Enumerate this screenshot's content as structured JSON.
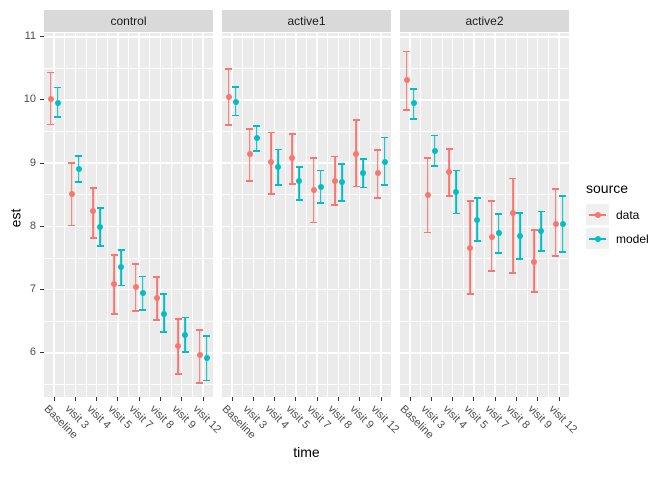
{
  "chart_data": {
    "type": "pointrange",
    "title": "",
    "xlabel": "time",
    "ylabel": "est",
    "categories": [
      "Baseline",
      "visit 3",
      "visit 4",
      "visit 5",
      "visit 7",
      "visit 8",
      "visit 9",
      "visit 12"
    ],
    "y_ticks": [
      6,
      7,
      8,
      9,
      10,
      11
    ],
    "y_minor_ticks": [
      5.5,
      6.5,
      7.5,
      8.5,
      9.5,
      10.5
    ],
    "ylim": [
      5.3,
      11.06
    ],
    "grid": true,
    "legend": {
      "title": "source",
      "position": "right",
      "entries": [
        {
          "label": "data",
          "color": "#F8766D"
        },
        {
          "label": "model",
          "color": "#00BFC4"
        }
      ]
    },
    "facets": [
      {
        "label": "control",
        "series": [
          {
            "name": "data",
            "color": "#F8766D",
            "est": [
              10.02,
              8.51,
              8.24,
              7.09,
              7.04,
              6.86,
              6.1,
              5.96
            ],
            "lo": [
              9.6,
              8.0,
              7.8,
              6.6,
              6.65,
              6.5,
              5.65,
              5.51
            ],
            "hi": [
              10.45,
              9.02,
              8.62,
              7.56,
              7.42,
              7.21,
              6.55,
              6.37
            ]
          },
          {
            "name": "model",
            "color": "#00BFC4",
            "est": [
              9.96,
              8.9,
              7.99,
              7.35,
              6.94,
              6.62,
              6.28,
              5.92
            ],
            "lo": [
              9.72,
              8.69,
              7.68,
              7.05,
              6.66,
              6.31,
              6.0,
              5.55
            ],
            "hi": [
              10.21,
              9.13,
              8.3,
              7.64,
              7.22,
              6.94,
              6.57,
              6.28
            ]
          }
        ]
      },
      {
        "label": "active1",
        "series": [
          {
            "name": "data",
            "color": "#F8766D",
            "est": [
              10.05,
              9.14,
              9.02,
              9.08,
              8.58,
              8.72,
              9.15,
              8.84
            ],
            "lo": [
              9.59,
              8.7,
              8.5,
              8.66,
              8.05,
              8.33,
              8.62,
              8.44
            ],
            "hi": [
              10.5,
              9.55,
              9.5,
              9.48,
              9.1,
              9.12,
              9.7,
              9.22
            ]
          },
          {
            "name": "model",
            "color": "#00BFC4",
            "est": [
              9.97,
              9.4,
              8.94,
              8.72,
              8.63,
              8.7,
              8.85,
              9.02
            ],
            "lo": [
              9.74,
              9.18,
              8.64,
              8.4,
              8.36,
              8.39,
              8.6,
              8.64
            ],
            "hi": [
              10.22,
              9.6,
              9.23,
              8.95,
              8.9,
              9.0,
              9.08,
              9.42
            ]
          }
        ]
      },
      {
        "label": "active2",
        "series": [
          {
            "name": "data",
            "color": "#F8766D",
            "est": [
              10.31,
              8.5,
              8.86,
              7.65,
              7.83,
              8.21,
              7.43,
              8.04
            ],
            "lo": [
              9.83,
              7.89,
              8.47,
              6.92,
              7.28,
              7.25,
              6.95,
              7.52
            ],
            "hi": [
              10.78,
              9.1,
              9.24,
              8.41,
              8.41,
              8.77,
              7.96,
              8.6
            ]
          },
          {
            "name": "model",
            "color": "#00BFC4",
            "est": [
              9.95,
              9.2,
              8.55,
              8.1,
              7.89,
              7.84,
              7.92,
              8.04
            ],
            "lo": [
              9.69,
              8.94,
              8.19,
              7.75,
              7.57,
              7.47,
              7.6,
              7.58
            ],
            "hi": [
              10.19,
              9.45,
              8.9,
              8.46,
              8.21,
              8.23,
              8.25,
              8.49
            ]
          }
        ]
      }
    ]
  },
  "colors": {
    "panel_bg": "#EBEBEB",
    "strip_bg": "#D9D9D9",
    "grid": "#FFFFFF",
    "axis_text": "#4D4D4D",
    "title_text": "#000000",
    "data_series": "#F8766D",
    "model_series": "#00BFC4",
    "legend_key_bg": "#F0F0F0"
  }
}
